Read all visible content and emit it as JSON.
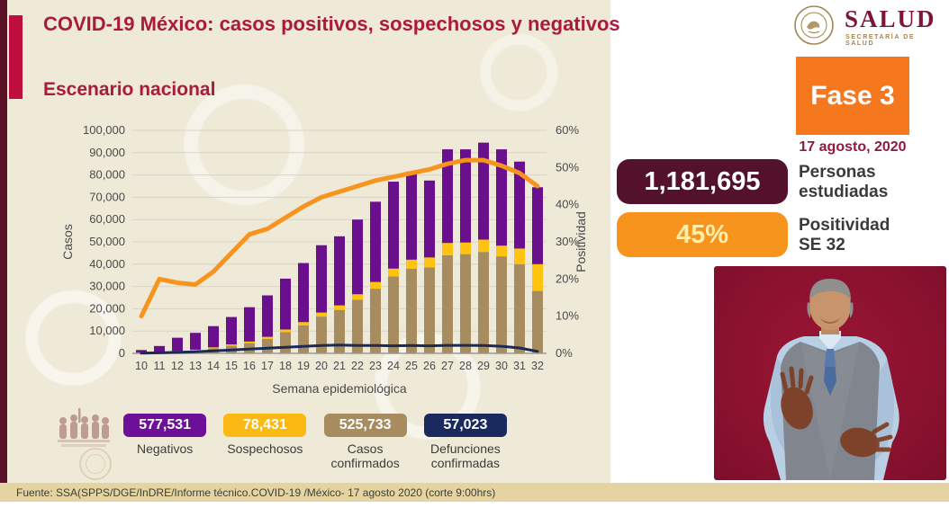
{
  "page": {
    "title": "COVID-19 México: casos positivos, sospechosos y negativos",
    "subtitle": "Escenario nacional"
  },
  "logo": {
    "name": "SALUD",
    "subtitle": "SECRETARÍA DE SALUD",
    "seal_icon": "eagle-seal-icon"
  },
  "phase": {
    "label": "Fase 3",
    "date": "17 agosto, 2020"
  },
  "stats": {
    "studied": {
      "value": "1,181,695",
      "label": "Personas\nestudiadas",
      "badge_color": "#53112B",
      "text_color": "#FFFFFF"
    },
    "positivity": {
      "value": "45%",
      "label": "Positividad\nSE 32",
      "badge_color": "#F7941E",
      "text_color": "#FFEFAF"
    }
  },
  "chart_data": {
    "type": "bar",
    "subtype": "stacked-bars-with-lines",
    "title": "Escenario nacional",
    "xlabel": "Semana epidemiológica",
    "ylabel_left": "Casos",
    "ylabel_right": "Positividad",
    "ylim_left": [
      0,
      100000
    ],
    "ytick_step_left": 10000,
    "ylim_right": [
      0,
      60
    ],
    "ytick_step_right": 10,
    "grid": true,
    "categories": [
      10,
      11,
      12,
      13,
      14,
      15,
      16,
      17,
      18,
      19,
      20,
      21,
      22,
      23,
      24,
      25,
      26,
      27,
      28,
      29,
      30,
      31,
      32
    ],
    "series": [
      {
        "name": "Casos confirmados",
        "type": "bar-stack",
        "color": "#A78C5F",
        "values": [
          200,
          400,
          800,
          1300,
          2200,
          3400,
          4600,
          6500,
          9500,
          12500,
          16500,
          19500,
          24000,
          29000,
          34500,
          38000,
          38500,
          44000,
          44500,
          45500,
          43500,
          40000,
          28000
        ]
      },
      {
        "name": "Sospechosos",
        "type": "bar-stack",
        "color": "#FFC20E",
        "values": [
          100,
          150,
          250,
          350,
          500,
          600,
          700,
          900,
          1200,
          1500,
          1800,
          2000,
          2500,
          3000,
          3500,
          4000,
          4500,
          5500,
          5200,
          5500,
          4800,
          7000,
          12000
        ]
      },
      {
        "name": "Negativos",
        "type": "bar-stack",
        "color": "#6A0F8E",
        "values": [
          1200,
          2750,
          5950,
          7550,
          9500,
          12300,
          15400,
          18600,
          22800,
          26500,
          30200,
          31000,
          33500,
          36000,
          39000,
          39500,
          34500,
          42000,
          41800,
          43500,
          43200,
          39000,
          34500
        ]
      },
      {
        "name": "Defunciones confirmadas",
        "type": "line",
        "axis": "left",
        "color": "#1B2A55",
        "stroke_width": 3,
        "values": [
          100,
          250,
          450,
          700,
          1100,
          1500,
          1900,
          2300,
          2700,
          3100,
          3500,
          3700,
          3500,
          3500,
          3400,
          3500,
          3400,
          3600,
          3600,
          3500,
          3200,
          2400,
          900
        ]
      },
      {
        "name": "Positividad",
        "type": "line",
        "axis": "right",
        "color": "#F7941E",
        "stroke_width": 5,
        "values": [
          10,
          20,
          19,
          18.5,
          22,
          27,
          32,
          33.5,
          36.5,
          39.5,
          42,
          43.5,
          45,
          46.5,
          47.5,
          48.5,
          49.5,
          51,
          52,
          52,
          50.5,
          48.5,
          45
        ]
      }
    ],
    "legend_position": "bottom"
  },
  "legend": {
    "items": [
      {
        "value": "577,531",
        "label": "Negativos",
        "color": "#6E0F9A",
        "text_color": "#FFFFFF"
      },
      {
        "value": "78,431",
        "label": "Sospechosos",
        "color": "#FDB913",
        "text_color": "#FFFFFF"
      },
      {
        "value": "525,733",
        "label": "Casos\nconfirmados",
        "color": "#A78C5F",
        "text_color": "#FFFFFF"
      },
      {
        "value": "57,023",
        "label": "Defunciones\nconfirmadas",
        "color": "#1B2A5E",
        "text_color": "#FFFFFF"
      }
    ]
  },
  "video": {
    "description": "sign-language-interpreter",
    "background_color": "#8C1230"
  },
  "footer": {
    "source": "Fuente: SSA(SPPS/DGE/InDRE/Informe técnico.COVID-19 /México- 17 agosto 2020 (corte 9:00hrs)"
  },
  "colors": {
    "title": "#AB1A3C",
    "accent_bar": "#BE0D3E",
    "left_strip": "#5A1027",
    "beige_background": "#EFE9D8",
    "footer_bar": "#E5D4A1",
    "phase_badge": "#F5771E"
  }
}
